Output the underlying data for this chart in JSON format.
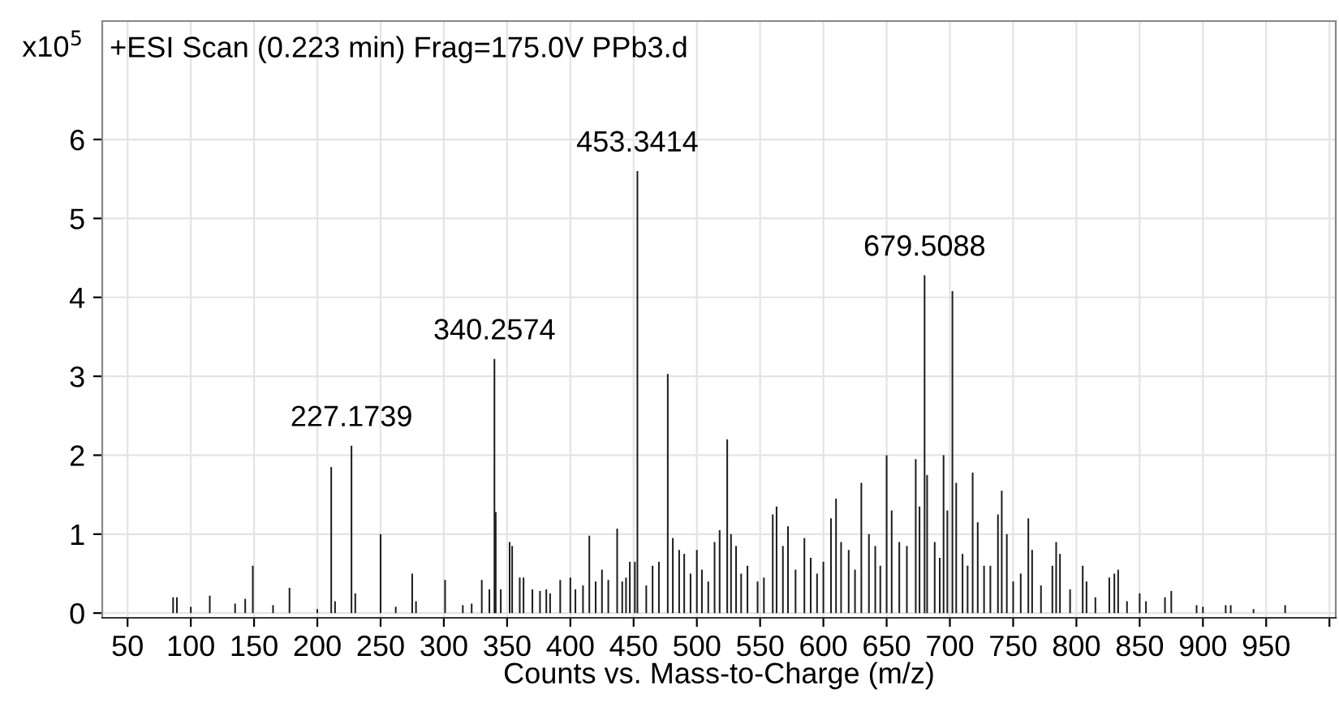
{
  "chart_data": {
    "type": "bar",
    "title": "+ESI Scan (0.223 min) Frag=175.0V PPb3.d",
    "xlabel": "Counts vs. Mass-to-Charge (m/z)",
    "ylabel": "x10$^{5}$",
    "color": "#1e1e1e",
    "x": [
      86,
      89,
      100,
      115,
      135,
      143,
      149,
      165,
      178,
      200,
      211,
      214,
      227,
      230,
      250,
      262,
      275,
      278,
      301,
      315,
      322,
      330,
      336,
      340,
      341,
      345,
      352,
      354,
      360,
      363,
      370,
      376,
      381,
      384,
      392,
      400,
      404,
      410,
      415,
      420,
      425,
      430,
      437,
      441,
      444,
      447,
      451,
      453,
      460,
      465,
      470,
      477,
      481,
      486,
      490,
      495,
      500,
      504,
      509,
      514,
      518,
      524,
      527,
      531,
      535,
      540,
      548,
      553,
      560,
      563,
      568,
      572,
      578,
      585,
      590,
      595,
      600,
      606,
      610,
      614,
      620,
      625,
      630,
      636,
      641,
      645,
      650,
      654,
      660,
      666,
      673,
      676,
      680,
      682,
      688,
      692,
      695,
      698,
      702,
      705,
      710,
      714,
      718,
      722,
      727,
      732,
      738,
      741,
      745,
      750,
      756,
      762,
      765,
      772,
      781,
      784,
      787,
      795,
      805,
      808,
      815,
      826,
      830,
      833,
      840,
      850,
      855,
      870,
      875,
      895,
      900,
      918,
      922,
      940,
      965
    ],
    "values": [
      0.2,
      0.2,
      0.08,
      0.22,
      0.12,
      0.18,
      0.6,
      0.1,
      0.32,
      0.05,
      1.85,
      0.15,
      2.12,
      0.25,
      1.0,
      0.08,
      0.5,
      0.15,
      0.42,
      0.1,
      0.12,
      0.42,
      0.3,
      3.22,
      1.28,
      0.3,
      0.9,
      0.85,
      0.45,
      0.45,
      0.3,
      0.28,
      0.3,
      0.25,
      0.42,
      0.45,
      0.3,
      0.35,
      0.98,
      0.4,
      0.55,
      0.42,
      1.07,
      0.4,
      0.45,
      0.65,
      0.65,
      5.6,
      0.35,
      0.6,
      0.65,
      3.03,
      0.95,
      0.8,
      0.75,
      0.5,
      0.8,
      0.55,
      0.4,
      0.9,
      1.05,
      2.2,
      1.0,
      0.85,
      0.5,
      0.6,
      0.4,
      0.45,
      1.25,
      1.35,
      0.85,
      1.1,
      0.55,
      0.95,
      0.7,
      0.5,
      0.65,
      1.2,
      1.45,
      0.9,
      0.8,
      0.55,
      1.65,
      1.0,
      0.85,
      0.6,
      2.0,
      1.3,
      0.9,
      0.85,
      1.95,
      1.35,
      4.28,
      1.75,
      0.9,
      0.7,
      2.0,
      1.3,
      4.08,
      1.65,
      0.75,
      0.6,
      1.78,
      1.15,
      0.6,
      0.6,
      1.25,
      1.55,
      1.0,
      0.4,
      0.5,
      1.2,
      0.8,
      0.35,
      0.6,
      0.9,
      0.75,
      0.3,
      0.6,
      0.4,
      0.2,
      0.45,
      0.5,
      0.55,
      0.15,
      0.25,
      0.15,
      0.2,
      0.28,
      0.1,
      0.08,
      0.1,
      0.1,
      0.05,
      0.1
    ],
    "xlim": [
      30,
      1005
    ],
    "ylim": [
      -0.06,
      7.5
    ],
    "xticks": [
      50,
      100,
      150,
      200,
      250,
      300,
      350,
      400,
      450,
      500,
      550,
      600,
      650,
      700,
      750,
      800,
      850,
      900,
      950,
      {
        "value": 1000,
        "label": null
      }
    ],
    "yticks": [
      0,
      1,
      2,
      3,
      4,
      5,
      6
    ],
    "grid": true,
    "annotations": [
      {
        "text": "227.1739",
        "x": 227,
        "y": 2.12
      },
      {
        "text": "340.2574",
        "x": 340,
        "y": 3.22
      },
      {
        "text": "453.3414",
        "x": 453,
        "y": 5.6
      },
      {
        "text": "679.5088",
        "x": 680,
        "y": 4.28
      }
    ]
  }
}
